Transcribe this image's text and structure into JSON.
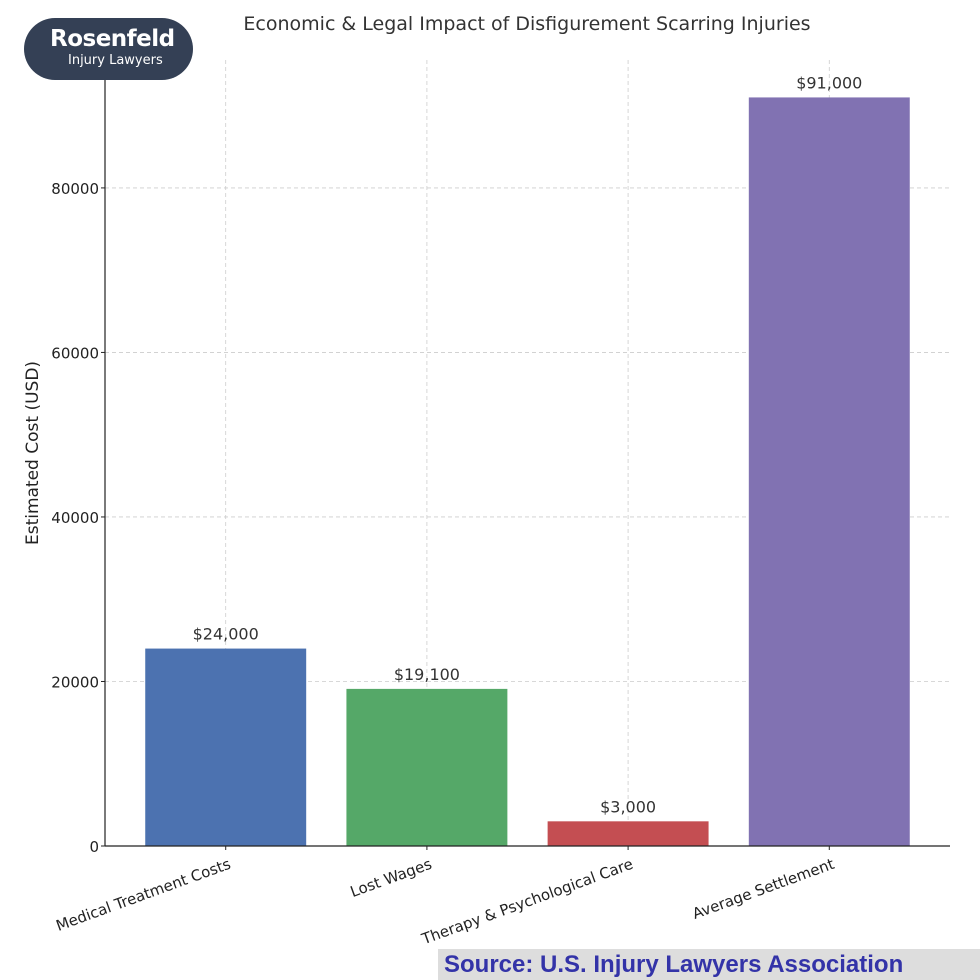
{
  "logo": {
    "name": "Rosenfeld",
    "subtitle": "Injury Lawyers"
  },
  "source": "Source:  U.S. Injury Lawyers Association",
  "chart_data": {
    "type": "bar",
    "title": "Economic & Legal Impact of Disfigurement Scarring Injuries",
    "xlabel": "",
    "ylabel": "Estimated Cost (USD)",
    "categories": [
      "Medical Treatment Costs",
      "Lost Wages",
      "Therapy & Psychological Care",
      "Average Settlement"
    ],
    "values": [
      24000,
      19100,
      3000,
      91000
    ],
    "data_labels": [
      "$24,000",
      "$19,100",
      "$3,000",
      "$91,000"
    ],
    "colors": [
      "#4c72b0",
      "#55a868",
      "#c44e52",
      "#8172b2"
    ],
    "yticks": [
      0,
      20000,
      40000,
      60000,
      80000
    ],
    "ylim": [
      0,
      95550
    ],
    "grid": true
  }
}
